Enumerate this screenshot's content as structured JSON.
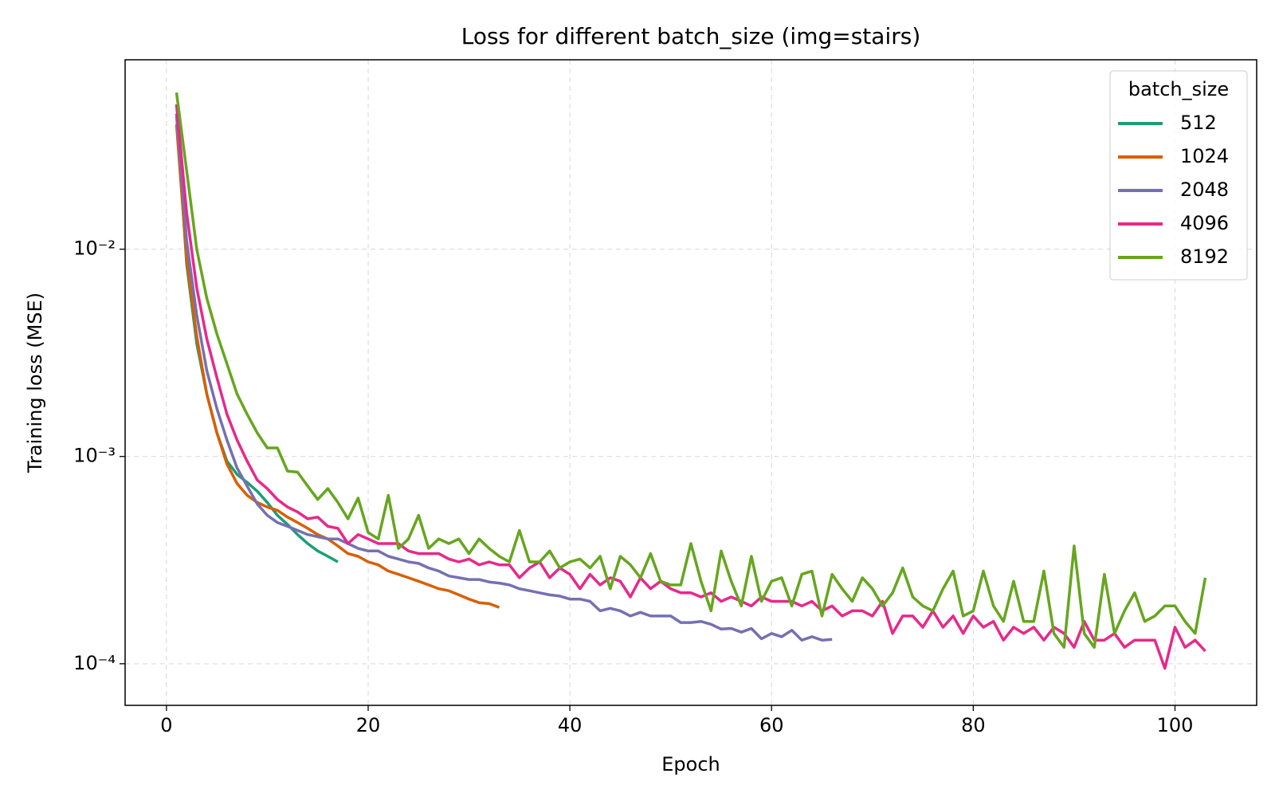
{
  "chart_data": {
    "type": "line",
    "title": "Loss for different batch_size (img=stairs)",
    "x_label": "Epoch",
    "y_label": "Training loss (MSE)",
    "legend_title": "batch_size",
    "legend_position": "upper right",
    "log_y": true,
    "grid": true,
    "xlim": [
      -4.1,
      108.1
    ],
    "xticks": [
      0,
      20,
      40,
      60,
      80,
      100
    ],
    "ylim": [
      6.3e-05,
      0.082
    ],
    "yticks": [
      {
        "value": 0.0001,
        "label": "10⁻⁴"
      },
      {
        "value": 0.001,
        "label": "10⁻³"
      },
      {
        "value": 0.01,
        "label": "10⁻²"
      }
    ],
    "x": [
      1,
      2,
      3,
      4,
      5,
      6,
      7,
      8,
      9,
      10,
      11,
      12,
      13,
      14,
      15,
      16,
      17,
      18,
      19,
      20,
      21,
      22,
      23,
      24,
      25,
      26,
      27,
      28,
      29,
      30,
      31,
      32,
      33,
      34,
      35,
      36,
      37,
      38,
      39,
      40,
      41,
      42,
      43,
      44,
      45,
      46,
      47,
      48,
      49,
      50,
      51,
      52,
      53,
      54,
      55,
      56,
      57,
      58,
      59,
      60,
      61,
      62,
      63,
      64,
      65,
      66,
      67,
      68,
      69,
      70,
      71,
      72,
      73,
      74,
      75,
      76,
      77,
      78,
      79,
      80,
      81,
      82,
      83,
      84,
      85,
      86,
      87,
      88,
      89,
      90,
      91,
      92,
      93,
      94,
      95,
      96,
      97,
      98,
      99,
      100,
      101,
      102,
      103
    ],
    "series": [
      {
        "name": "512",
        "color": "#1b9e77",
        "values": [
          0.045,
          0.0085,
          0.0035,
          0.002,
          0.0013,
          0.00095,
          0.00082,
          0.00075,
          0.00068,
          0.0006,
          0.00052,
          0.00047,
          0.00042,
          0.00038,
          0.00035,
          0.00033,
          0.00031,
          null,
          null,
          null,
          null,
          null,
          null,
          null,
          null,
          null,
          null,
          null,
          null,
          null,
          null,
          null,
          null,
          null,
          null,
          null,
          null,
          null,
          null,
          null,
          null,
          null,
          null,
          null,
          null,
          null,
          null,
          null,
          null,
          null,
          null,
          null,
          null,
          null,
          null,
          null,
          null,
          null,
          null,
          null,
          null,
          null,
          null,
          null,
          null,
          null,
          null,
          null,
          null,
          null,
          null,
          null,
          null,
          null,
          null,
          null,
          null,
          null,
          null,
          null,
          null,
          null,
          null,
          null,
          null,
          null,
          null,
          null,
          null,
          null,
          null,
          null,
          null,
          null,
          null,
          null,
          null,
          null,
          null,
          null,
          null,
          null,
          null
        ]
      },
      {
        "name": "1024",
        "color": "#d95f02",
        "values": [
          0.04,
          0.009,
          0.0038,
          0.002,
          0.0013,
          0.00092,
          0.00074,
          0.00065,
          0.0006,
          0.00057,
          0.00055,
          0.00051,
          0.00048,
          0.00045,
          0.00042,
          0.0004,
          0.00037,
          0.00034,
          0.00033,
          0.00031,
          0.0003,
          0.00028,
          0.00027,
          0.00026,
          0.00025,
          0.00024,
          0.00023,
          0.000225,
          0.000215,
          0.000205,
          0.000197,
          0.000195,
          0.000187,
          null,
          null,
          null,
          null,
          null,
          null,
          null,
          null,
          null,
          null,
          null,
          null,
          null,
          null,
          null,
          null,
          null,
          null,
          null,
          null,
          null,
          null,
          null,
          null,
          null,
          null,
          null,
          null,
          null,
          null,
          null,
          null,
          null,
          null,
          null,
          null,
          null,
          null,
          null,
          null,
          null,
          null,
          null,
          null,
          null,
          null,
          null,
          null,
          null,
          null,
          null,
          null,
          null,
          null,
          null,
          null,
          null,
          null,
          null,
          null,
          null,
          null,
          null,
          null,
          null,
          null,
          null,
          null,
          null,
          null
        ]
      },
      {
        "name": "2048",
        "color": "#7570b3",
        "values": [
          0.045,
          0.011,
          0.0048,
          0.0026,
          0.0017,
          0.0012,
          0.00088,
          0.00072,
          0.00059,
          0.00052,
          0.00048,
          0.00046,
          0.00044,
          0.00042,
          0.00041,
          0.0004,
          0.0004,
          0.00038,
          0.00036,
          0.00035,
          0.00035,
          0.00033,
          0.00032,
          0.00031,
          0.000305,
          0.00029,
          0.00028,
          0.000265,
          0.00026,
          0.000255,
          0.000255,
          0.000248,
          0.000245,
          0.00024,
          0.00023,
          0.000225,
          0.00022,
          0.000215,
          0.000212,
          0.000205,
          0.000205,
          0.0002,
          0.00018,
          0.000185,
          0.00018,
          0.00017,
          0.000177,
          0.00017,
          0.00017,
          0.00017,
          0.000158,
          0.000158,
          0.00016,
          0.000155,
          0.000147,
          0.000148,
          0.000142,
          0.000148,
          0.000132,
          0.00014,
          0.000135,
          0.000145,
          0.00013,
          0.000135,
          0.00013,
          0.000131,
          null,
          null,
          null,
          null,
          null,
          null,
          null,
          null,
          null,
          null,
          null,
          null,
          null,
          null,
          null,
          null,
          null,
          null,
          null,
          null,
          null,
          null,
          null,
          null,
          null,
          null,
          null,
          null,
          null,
          null,
          null,
          null,
          null,
          null,
          null,
          null,
          null
        ]
      },
      {
        "name": "4096",
        "color": "#e7298a",
        "values": [
          0.05,
          0.015,
          0.0065,
          0.0037,
          0.0024,
          0.0016,
          0.0012,
          0.00095,
          0.00077,
          0.0007,
          0.00062,
          0.00057,
          0.00054,
          0.0005,
          0.00051,
          0.00046,
          0.00045,
          0.00038,
          0.00042,
          0.0004,
          0.00038,
          0.00038,
          0.00038,
          0.00035,
          0.00034,
          0.00034,
          0.00034,
          0.00032,
          0.00031,
          0.00032,
          0.0003,
          0.00031,
          0.0003,
          0.0003,
          0.00026,
          0.00029,
          0.00031,
          0.00026,
          0.00029,
          0.00027,
          0.00023,
          0.00027,
          0.00024,
          0.00026,
          0.00025,
          0.00021,
          0.00026,
          0.00023,
          0.00025,
          0.00023,
          0.00022,
          0.00022,
          0.00021,
          0.00022,
          0.0002,
          0.00021,
          0.0002,
          0.00019,
          0.00021,
          0.0002,
          0.0002,
          0.0002,
          0.00019,
          0.0002,
          0.00018,
          0.00019,
          0.00017,
          0.00018,
          0.00018,
          0.00017,
          0.0002,
          0.00014,
          0.00017,
          0.00017,
          0.00015,
          0.00018,
          0.00015,
          0.00017,
          0.00014,
          0.00017,
          0.00015,
          0.00016,
          0.00013,
          0.00015,
          0.00014,
          0.00015,
          0.00013,
          0.00015,
          0.00014,
          0.00012,
          0.00016,
          0.00013,
          0.00013,
          0.00014,
          0.00012,
          0.00013,
          0.00013,
          0.00013,
          9.5e-05,
          0.00015,
          0.00012,
          0.00013,
          0.000115
        ]
      },
      {
        "name": "8192",
        "color": "#66a61e",
        "values": [
          0.057,
          0.024,
          0.01,
          0.0058,
          0.0039,
          0.0028,
          0.002,
          0.0016,
          0.0013,
          0.0011,
          0.0011,
          0.00085,
          0.00084,
          0.00072,
          0.00062,
          0.0007,
          0.0006,
          0.0005,
          0.00063,
          0.00043,
          0.0004,
          0.00065,
          0.00036,
          0.0004,
          0.00052,
          0.00036,
          0.0004,
          0.00038,
          0.0004,
          0.00034,
          0.0004,
          0.00036,
          0.00033,
          0.00031,
          0.00044,
          0.00031,
          0.00031,
          0.00035,
          0.00029,
          0.00031,
          0.00032,
          0.00029,
          0.00033,
          0.00023,
          0.00033,
          0.0003,
          0.00026,
          0.00034,
          0.00025,
          0.00024,
          0.00024,
          0.00038,
          0.00025,
          0.00018,
          0.00035,
          0.00025,
          0.00019,
          0.00033,
          0.0002,
          0.00025,
          0.00026,
          0.00019,
          0.00027,
          0.00028,
          0.00017,
          0.00027,
          0.00023,
          0.0002,
          0.00026,
          0.00023,
          0.00019,
          0.00022,
          0.00029,
          0.00021,
          0.00019,
          0.00018,
          0.00023,
          0.00028,
          0.00017,
          0.00018,
          0.00028,
          0.00019,
          0.00016,
          0.00025,
          0.00016,
          0.00016,
          0.00028,
          0.00014,
          0.00012,
          0.00037,
          0.00014,
          0.00012,
          0.00027,
          0.00014,
          0.00018,
          0.00022,
          0.00016,
          0.00017,
          0.00019,
          0.00019,
          0.00016,
          0.00014,
          0.00026
        ]
      }
    ]
  }
}
